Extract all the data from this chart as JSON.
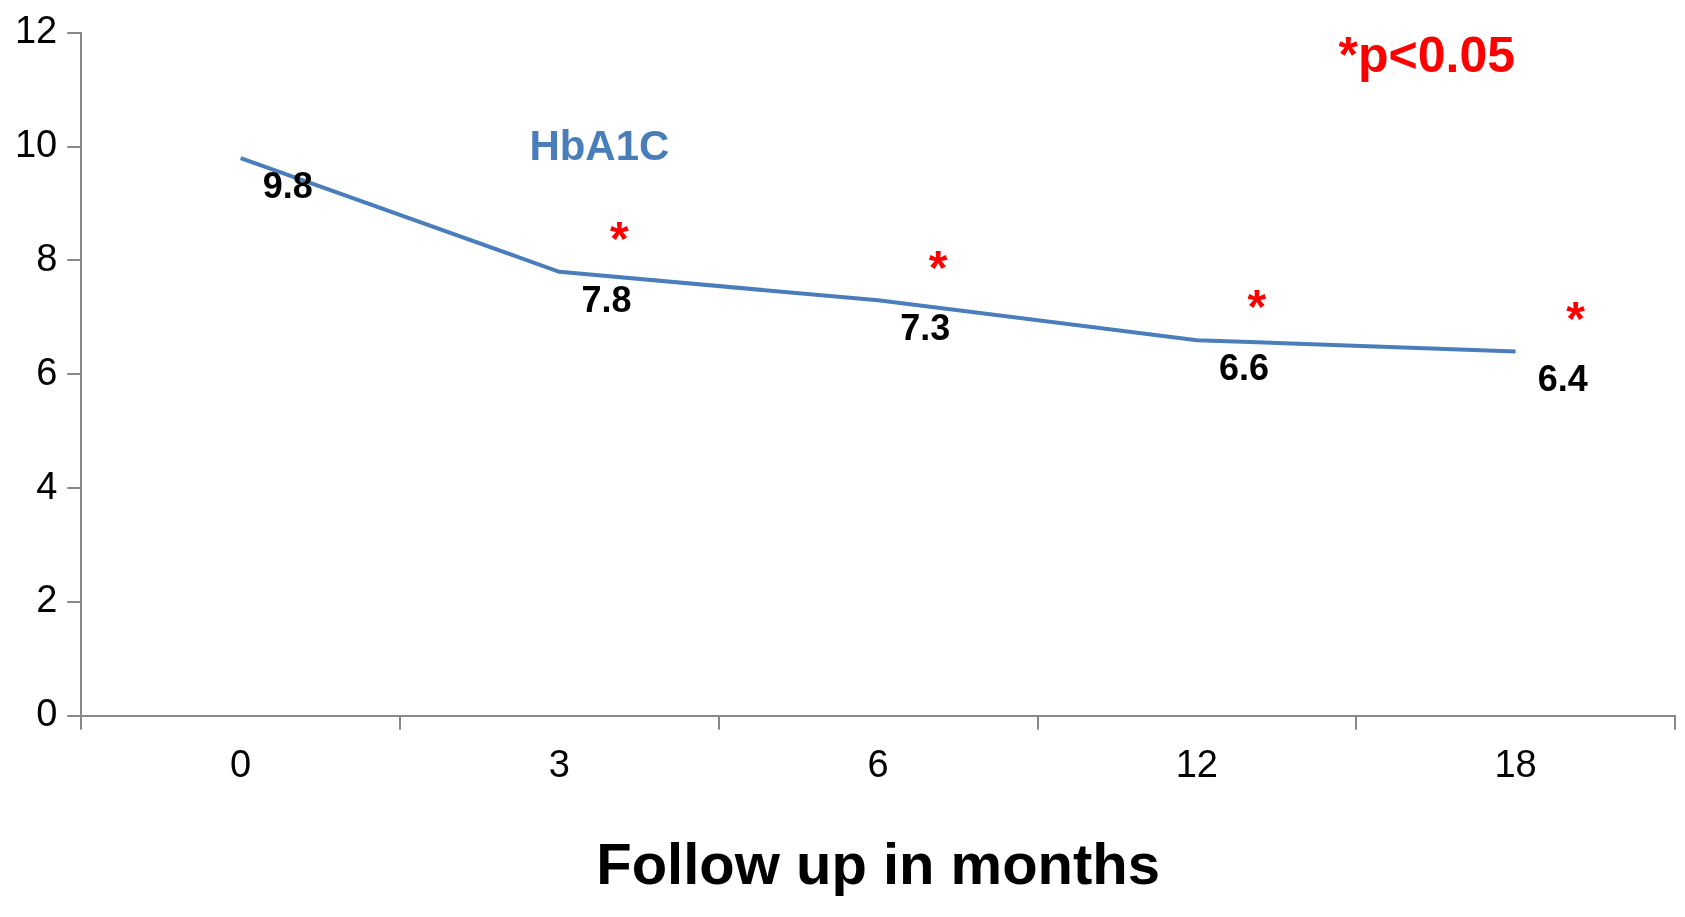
{
  "chart_data": {
    "type": "line",
    "xlabel": "Follow up in months",
    "categories": [
      "0",
      "3",
      "6",
      "12",
      "18"
    ],
    "series": [
      {
        "name": "HbA1C",
        "color": "#4a7ebb",
        "values": [
          9.8,
          7.8,
          7.3,
          6.6,
          6.4
        ]
      }
    ],
    "ylim": [
      0,
      12
    ],
    "yticks": [
      0,
      2,
      4,
      6,
      8,
      10,
      12
    ],
    "grid": false,
    "legend": false,
    "marker": "none",
    "data_labels": true,
    "annotations": [
      "*p<0.05",
      {
        "text": "*",
        "x": "3",
        "y": 7.8
      },
      {
        "text": "*",
        "x": "6",
        "y": 7.3
      },
      {
        "text": "*",
        "x": "12",
        "y": 6.6
      },
      {
        "text": "*",
        "x": "18",
        "y": 6.4
      }
    ]
  }
}
